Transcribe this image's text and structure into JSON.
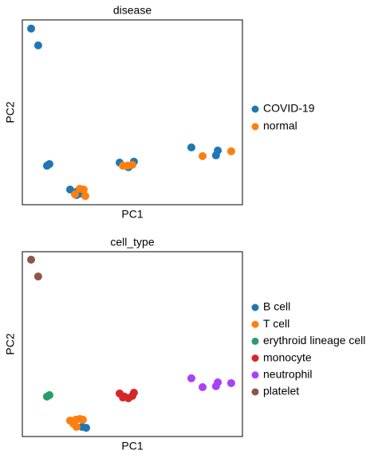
{
  "chart_data": [
    {
      "type": "scatter",
      "title": "disease",
      "xlabel": "PC1",
      "ylabel": "PC2",
      "xlim": [
        0,
        100
      ],
      "ylim": [
        0,
        100
      ],
      "legend": "right",
      "series": [
        {
          "name": "COVID-19",
          "color": "#1f77b4",
          "x": [
            4.0,
            7.2,
            11.2,
            12.3,
            21.7,
            25.0,
            24.6,
            26.1,
            27.5,
            44.2,
            48.2,
            50.7,
            76.8,
            88.0,
            88.8
          ],
          "y": [
            95.3,
            86.2,
            21.1,
            22.0,
            8.2,
            7.3,
            5.2,
            6.0,
            8.2,
            22.8,
            20.3,
            23.3,
            31.0,
            26.7,
            29.3
          ]
        },
        {
          "name": "normal",
          "color": "#ff7f0e",
          "x": [
            26.1,
            27.9,
            28.6,
            23.9,
            45.7,
            47.8,
            50.0,
            81.9,
            94.9
          ],
          "y": [
            8.6,
            8.2,
            4.7,
            5.6,
            21.1,
            21.1,
            21.6,
            26.3,
            28.9
          ]
        }
      ]
    },
    {
      "type": "scatter",
      "title": "cell_type",
      "xlabel": "PC1",
      "ylabel": "PC2",
      "xlim": [
        0,
        100
      ],
      "ylim": [
        0,
        100
      ],
      "legend": "right",
      "series": [
        {
          "name": "B cell",
          "color": "#1f77b4",
          "x": [
            27.2,
            29.0
          ],
          "y": [
            5.2,
            4.7
          ]
        },
        {
          "name": "T cell",
          "color": "#ff7f0e",
          "x": [
            21.7,
            24.3,
            26.1,
            27.5,
            24.6,
            23.2
          ],
          "y": [
            8.6,
            9.1,
            9.5,
            9.1,
            5.2,
            6.9
          ]
        },
        {
          "name": "erythroid lineage cell",
          "color": "#279e68",
          "x": [
            11.2,
            12.3
          ],
          "y": [
            21.6,
            22.4
          ]
        },
        {
          "name": "monocyte",
          "color": "#d62728",
          "x": [
            44.2,
            46.4,
            48.2,
            50.7,
            50.0,
            45.7
          ],
          "y": [
            23.3,
            21.6,
            20.7,
            23.7,
            22.0,
            21.1
          ]
        },
        {
          "name": "neutrophil",
          "color": "#aa40fc",
          "x": [
            76.8,
            81.9,
            88.0,
            88.8,
            94.9
          ],
          "y": [
            31.5,
            26.7,
            27.2,
            29.3,
            28.9
          ]
        },
        {
          "name": "platelet",
          "color": "#8c564b",
          "x": [
            4.0,
            7.2
          ],
          "y": [
            95.7,
            86.6
          ]
        }
      ]
    }
  ]
}
